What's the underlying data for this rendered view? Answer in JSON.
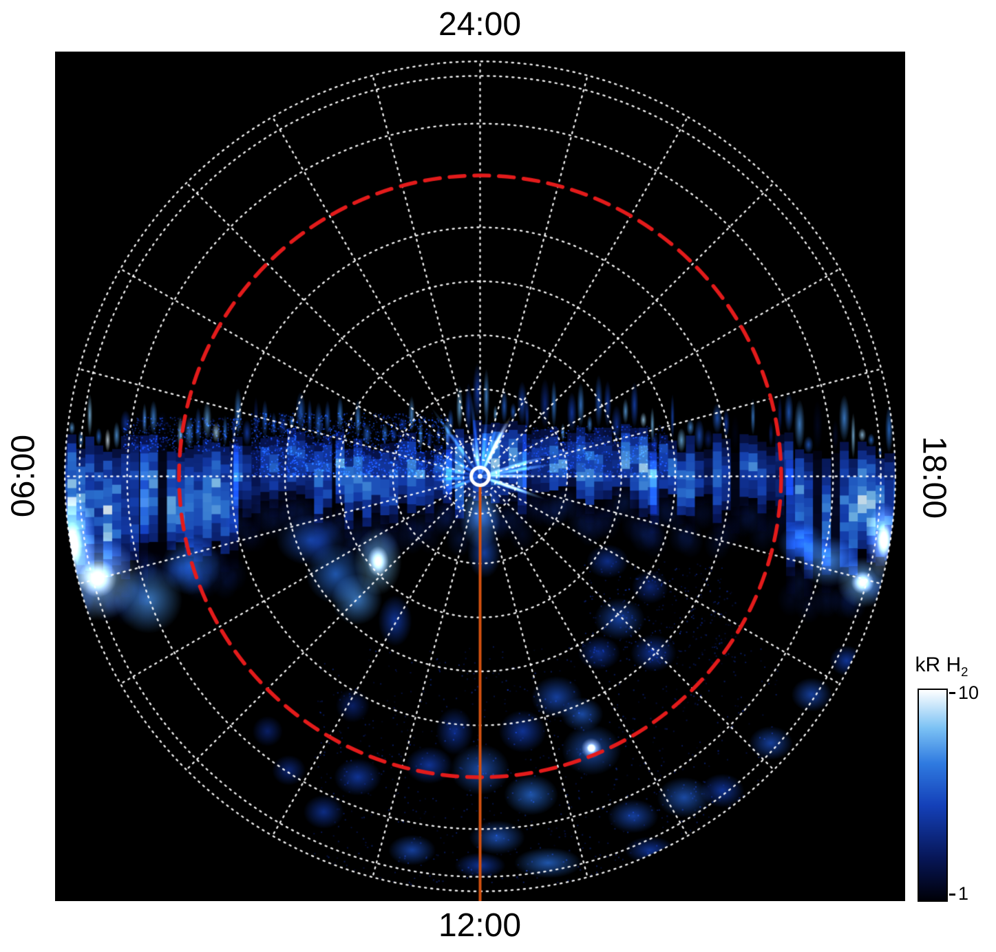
{
  "figure": {
    "bg": "#ffffff",
    "plot_bg": "#000000"
  },
  "labels": {
    "top": "24:00",
    "bottom": "12:00",
    "left": "06:00",
    "right": "18:00"
  },
  "colorbar": {
    "title": "kR H",
    "title_sub": "2",
    "max": "10",
    "min": "1"
  },
  "chart_data": {
    "type": "heatmap",
    "projection": "polar-local-time",
    "quantity": "H2 auroral emission brightness",
    "units": "kR",
    "scale": "log",
    "value_range": [
      1,
      10
    ],
    "local_time_labels": [
      {
        "label": "24:00",
        "position": "top"
      },
      {
        "label": "06:00",
        "position": "left"
      },
      {
        "label": "18:00",
        "position": "right"
      },
      {
        "label": "12:00",
        "position": "bottom"
      }
    ],
    "grid": {
      "color": "#ffffff",
      "style": "dotted",
      "spokes": 24,
      "spoke_inner_frac": 0.05,
      "ring_fracs": [
        0.04,
        0.09,
        0.21,
        0.34,
        0.47,
        0.6,
        0.85,
        0.965,
        1.0
      ],
      "outer_radius_frac": 0.977
    },
    "reference_circle": {
      "radius_frac": 0.725,
      "color": "#e31b1b",
      "style": "dashed"
    },
    "meridian_line": {
      "local_time": "12:00",
      "color": "#d2500f"
    },
    "pole_marker": {
      "color": "#ffffff"
    },
    "emission": {
      "seed": 20240512,
      "colormap": [
        [
          0,
          "#000008"
        ],
        [
          0.2,
          "#071657"
        ],
        [
          0.45,
          "#1440b8"
        ],
        [
          0.65,
          "#2f7ae0"
        ],
        [
          0.82,
          "#7cc2f4"
        ],
        [
          1,
          "#ffffff"
        ]
      ],
      "band_segments": [
        {
          "x0": 0.004,
          "x1": 0.1,
          "top": 0.46,
          "base": 0.63,
          "spike_top": 0.4,
          "gap": 0.04,
          "i": [
            0.5,
            1.0
          ]
        },
        {
          "x0": 0.1,
          "x1": 0.21,
          "top": 0.46,
          "base": 0.6,
          "spike_top": 0.4,
          "gap": 0.08,
          "i": [
            0.45,
            0.95
          ]
        },
        {
          "x0": 0.21,
          "x1": 0.33,
          "top": 0.455,
          "base": 0.545,
          "spike_top": 0.395,
          "gap": 0.18,
          "i": [
            0.3,
            0.75
          ]
        },
        {
          "x0": 0.33,
          "x1": 0.46,
          "top": 0.46,
          "base": 0.555,
          "spike_top": 0.4,
          "gap": 0.12,
          "i": [
            0.4,
            0.9
          ]
        },
        {
          "x0": 0.46,
          "x1": 0.55,
          "top": 0.44,
          "base": 0.545,
          "spike_top": 0.365,
          "gap": 0.08,
          "i": [
            0.45,
            1.0
          ]
        },
        {
          "x0": 0.55,
          "x1": 0.7,
          "top": 0.45,
          "base": 0.535,
          "spike_top": 0.385,
          "gap": 0.1,
          "i": [
            0.4,
            0.95
          ]
        },
        {
          "x0": 0.7,
          "x1": 0.86,
          "top": 0.46,
          "base": 0.545,
          "spike_top": 0.4,
          "gap": 0.16,
          "i": [
            0.3,
            0.85
          ]
        },
        {
          "x0": 0.86,
          "x1": 0.998,
          "top": 0.47,
          "base": 0.62,
          "spike_top": 0.41,
          "gap": 0.05,
          "i": [
            0.5,
            1.0
          ]
        }
      ],
      "center_rays": {
        "x": 0.5,
        "y": 0.5,
        "n": 18,
        "len": [
          0.04,
          0.1
        ],
        "i": [
          0.5,
          1.0
        ]
      },
      "patches": [
        [
          0.05,
          0.62,
          0.05,
          0.05,
          0.85
        ],
        [
          0.11,
          0.645,
          0.04,
          0.04,
          0.7
        ],
        [
          0.02,
          0.58,
          0.028,
          0.06,
          0.9
        ],
        [
          0.16,
          0.605,
          0.035,
          0.035,
          0.6
        ],
        [
          0.3,
          0.575,
          0.04,
          0.03,
          0.5
        ],
        [
          0.33,
          0.615,
          0.035,
          0.035,
          0.6
        ],
        [
          0.355,
          0.645,
          0.03,
          0.03,
          0.7
        ],
        [
          0.38,
          0.6,
          0.028,
          0.04,
          0.8
        ],
        [
          0.4,
          0.67,
          0.02,
          0.03,
          0.45
        ],
        [
          0.91,
          0.6,
          0.035,
          0.03,
          0.7
        ],
        [
          0.95,
          0.625,
          0.03,
          0.03,
          0.8
        ],
        [
          0.88,
          0.58,
          0.03,
          0.025,
          0.6
        ],
        [
          0.975,
          0.575,
          0.02,
          0.045,
          0.9
        ],
        [
          0.5,
          0.545,
          0.025,
          0.04,
          0.7
        ],
        [
          0.505,
          0.59,
          0.02,
          0.03,
          0.5
        ],
        [
          0.664,
          0.668,
          0.03,
          0.025,
          0.5
        ],
        [
          0.704,
          0.708,
          0.027,
          0.022,
          0.45
        ],
        [
          0.64,
          0.708,
          0.025,
          0.02,
          0.4
        ],
        [
          0.59,
          0.76,
          0.03,
          0.025,
          0.5
        ],
        [
          0.62,
          0.78,
          0.025,
          0.02,
          0.55
        ],
        [
          0.631,
          0.82,
          0.012,
          0.012,
          1.0
        ],
        [
          0.631,
          0.822,
          0.035,
          0.03,
          0.55
        ],
        [
          0.55,
          0.8,
          0.028,
          0.025,
          0.45
        ],
        [
          0.5,
          0.845,
          0.035,
          0.03,
          0.55
        ],
        [
          0.47,
          0.8,
          0.022,
          0.028,
          0.4
        ],
        [
          0.44,
          0.84,
          0.028,
          0.022,
          0.45
        ],
        [
          0.56,
          0.875,
          0.032,
          0.024,
          0.6
        ],
        [
          0.52,
          0.925,
          0.033,
          0.02,
          0.55
        ],
        [
          0.58,
          0.955,
          0.04,
          0.018,
          0.6
        ],
        [
          0.5,
          0.958,
          0.03,
          0.015,
          0.45
        ],
        [
          0.42,
          0.94,
          0.028,
          0.018,
          0.5
        ],
        [
          0.356,
          0.854,
          0.028,
          0.022,
          0.45
        ],
        [
          0.316,
          0.895,
          0.024,
          0.02,
          0.4
        ],
        [
          0.275,
          0.846,
          0.02,
          0.018,
          0.35
        ],
        [
          0.68,
          0.9,
          0.03,
          0.02,
          0.5
        ],
        [
          0.74,
          0.878,
          0.032,
          0.024,
          0.55
        ],
        [
          0.785,
          0.87,
          0.026,
          0.02,
          0.45
        ],
        [
          0.842,
          0.814,
          0.026,
          0.02,
          0.5
        ],
        [
          0.89,
          0.757,
          0.024,
          0.02,
          0.5
        ],
        [
          0.931,
          0.717,
          0.02,
          0.018,
          0.45
        ],
        [
          0.7,
          0.94,
          0.03,
          0.016,
          0.45
        ],
        [
          0.78,
          0.93,
          0.026,
          0.016,
          0.4
        ],
        [
          0.25,
          0.8,
          0.018,
          0.018,
          0.3
        ],
        [
          0.35,
          0.77,
          0.02,
          0.02,
          0.3
        ],
        [
          0.65,
          0.6,
          0.025,
          0.02,
          0.4
        ],
        [
          0.7,
          0.63,
          0.022,
          0.02,
          0.35
        ]
      ],
      "speckle": [
        {
          "x0": 0.23,
          "x1": 0.46,
          "y0": 0.425,
          "y1": 0.5,
          "n": 1400,
          "i": [
            0.08,
            0.5
          ]
        },
        {
          "x0": 0.55,
          "x1": 0.72,
          "y0": 0.44,
          "y1": 0.5,
          "n": 500,
          "i": [
            0.08,
            0.4
          ]
        },
        {
          "x0": 0.08,
          "x1": 0.22,
          "y0": 0.43,
          "y1": 0.47,
          "n": 400,
          "i": [
            0.08,
            0.45
          ]
        },
        {
          "x0": 0.3,
          "x1": 0.85,
          "y0": 0.7,
          "y1": 0.98,
          "n": 900,
          "i": [
            0.05,
            0.28
          ]
        },
        {
          "x0": 0.62,
          "x1": 0.8,
          "y0": 0.6,
          "y1": 0.72,
          "n": 300,
          "i": [
            0.05,
            0.28
          ]
        }
      ]
    }
  }
}
